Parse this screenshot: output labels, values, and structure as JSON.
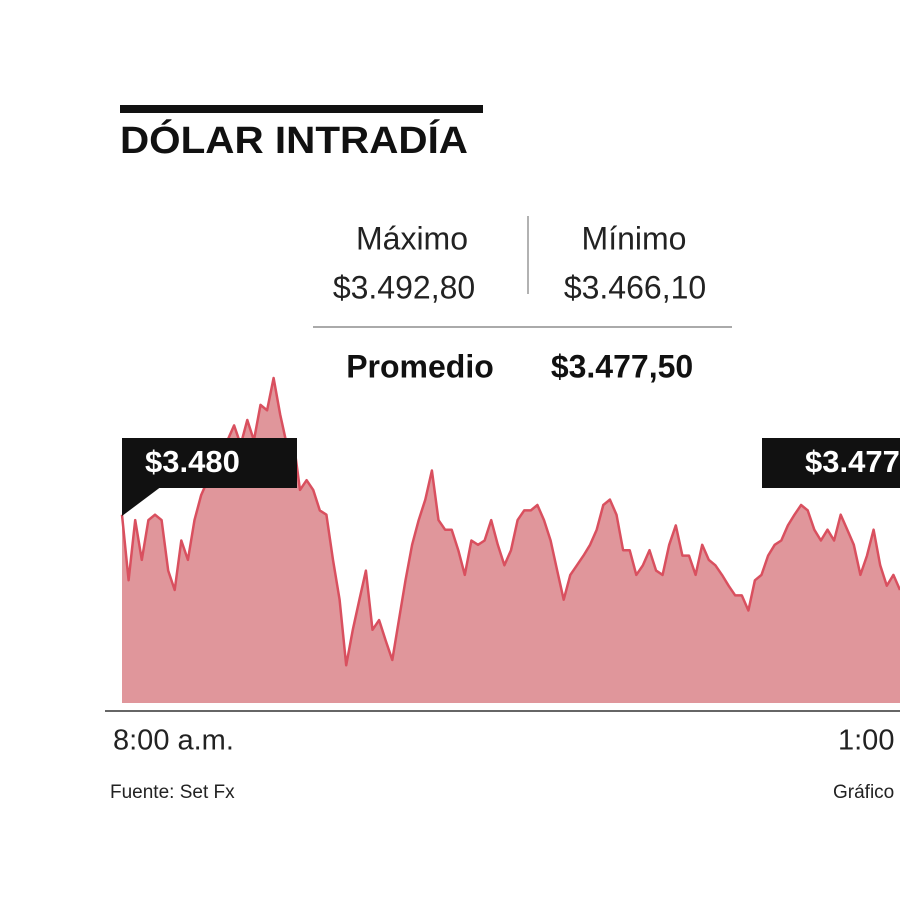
{
  "chart_data": {
    "type": "area",
    "title": "DÓLAR INTRADÍA",
    "stats": {
      "max_label": "Máximo",
      "max_value": "$3.492,80",
      "min_label": "Mínimo",
      "min_value": "$3.466,10",
      "avg_label": "Promedio",
      "avg_value": "$3.477,50"
    },
    "annotations": [
      "$3.480",
      "$3.477"
    ],
    "x_labels": [
      "8:00 a.m.",
      "1:00"
    ],
    "source": "Fuente: Set Fx",
    "credit": "Gráfico",
    "line_color": "#d9505f",
    "fill_color": "#e0969b",
    "ylim": [
      3462.6,
      3492.8
    ],
    "values": [
      3480.1,
      3474.0,
      3479.6,
      3475.9,
      3479.6,
      3480.1,
      3479.6,
      3474.9,
      3473.1,
      3477.7,
      3475.9,
      3479.6,
      3481.9,
      3483.3,
      3484.2,
      3485.6,
      3487.0,
      3488.4,
      3486.6,
      3488.9,
      3487.0,
      3490.3,
      3489.8,
      3492.8,
      3489.4,
      3486.6,
      3487.0,
      3482.4,
      3483.3,
      3482.4,
      3480.5,
      3480.1,
      3475.9,
      3472.2,
      3466.1,
      3469.4,
      3472.2,
      3474.9,
      3469.4,
      3470.3,
      3468.4,
      3466.6,
      3470.3,
      3474.0,
      3477.3,
      3479.6,
      3481.5,
      3484.2,
      3479.6,
      3478.7,
      3478.7,
      3476.8,
      3474.5,
      3477.7,
      3477.3,
      3477.7,
      3479.6,
      3477.3,
      3475.4,
      3476.8,
      3479.6,
      3480.5,
      3480.5,
      3481.0,
      3479.6,
      3477.7,
      3474.9,
      3472.2,
      3474.5,
      3475.4,
      3476.3,
      3477.3,
      3478.7,
      3481.0,
      3481.5,
      3480.1,
      3476.8,
      3476.8,
      3474.5,
      3475.4,
      3476.8,
      3474.9,
      3474.5,
      3477.3,
      3479.1,
      3476.3,
      3476.3,
      3474.5,
      3477.3,
      3475.9,
      3475.4,
      3474.5,
      3473.5,
      3472.6,
      3472.6,
      3471.2,
      3474.0,
      3474.5,
      3476.3,
      3477.3,
      3477.7,
      3479.1,
      3480.1,
      3481.0,
      3480.5,
      3478.7,
      3477.7,
      3478.7,
      3477.7,
      3480.1,
      3478.7,
      3477.3,
      3474.5,
      3476.3,
      3478.7,
      3475.4,
      3473.5,
      3474.5,
      3473.1
    ]
  }
}
